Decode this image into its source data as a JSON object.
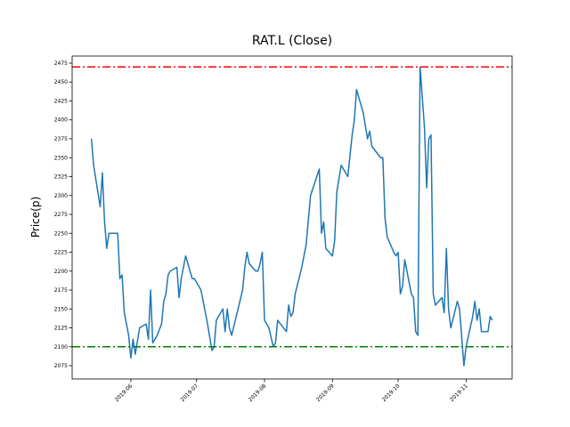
{
  "chart_data": {
    "type": "line",
    "title": "RAT.L (Close)",
    "y_label": "Price(p)",
    "color": "#1f77b4",
    "x": [
      134,
      135,
      138,
      139,
      140,
      141,
      142,
      146,
      147,
      148,
      149,
      151,
      152,
      153,
      154,
      156,
      159,
      160,
      161,
      162,
      164,
      166,
      167,
      168,
      169,
      170,
      173,
      174,
      175,
      177,
      180,
      181,
      184,
      187,
      189,
      190,
      191,
      194,
      195,
      196,
      197,
      198,
      203,
      204,
      205,
      206,
      209,
      210,
      211,
      212,
      213,
      215,
      217,
      218,
      219,
      223,
      224,
      225,
      226,
      227,
      230,
      232,
      234,
      238,
      239,
      240,
      241,
      244,
      245,
      246,
      248,
      251,
      253,
      254,
      255,
      258,
      260,
      261,
      262,
      266,
      267,
      268,
      269,
      272,
      273,
      274,
      275,
      276,
      277,
      280,
      281,
      282,
      283,
      284,
      286,
      287,
      288,
      289,
      290,
      291,
      294,
      295,
      296,
      297,
      298,
      301,
      302,
      304,
      305,
      308,
      309,
      310,
      311,
      312,
      315,
      316,
      317
    ],
    "values": [
      2375,
      2340,
      2285,
      2330,
      2265,
      2230,
      2250,
      2250,
      2190,
      2195,
      2145,
      2115,
      2085,
      2110,
      2090,
      2125,
      2130,
      2110,
      2175,
      2105,
      2115,
      2130,
      2160,
      2170,
      2195,
      2200,
      2205,
      2165,
      2190,
      2220,
      2190,
      2190,
      2175,
      2130,
      2095,
      2100,
      2135,
      2150,
      2120,
      2150,
      2125,
      2115,
      2175,
      2205,
      2225,
      2210,
      2200,
      2200,
      2210,
      2225,
      2135,
      2125,
      2100,
      2105,
      2135,
      2120,
      2155,
      2140,
      2145,
      2170,
      2205,
      2235,
      2300,
      2335,
      2250,
      2265,
      2230,
      2220,
      2240,
      2305,
      2340,
      2325,
      2380,
      2400,
      2440,
      2410,
      2375,
      2385,
      2365,
      2350,
      2350,
      2270,
      2245,
      2225,
      2220,
      2225,
      2170,
      2180,
      2215,
      2170,
      2165,
      2120,
      2115,
      2470,
      2390,
      2310,
      2375,
      2380,
      2170,
      2155,
      2165,
      2145,
      2230,
      2150,
      2125,
      2160,
      2150,
      2075,
      2100,
      2140,
      2160,
      2135,
      2150,
      2120,
      2120,
      2140,
      2135
    ],
    "reference_lines": [
      {
        "value": 2470,
        "color": "#ff0000"
      },
      {
        "value": 2100,
        "color": "#008000"
      }
    ],
    "xlim": [
      125.2,
      326.0
    ],
    "xticks": [
      {
        "value": 152,
        "label": "2019-06"
      },
      {
        "value": 182,
        "label": "2019-07"
      },
      {
        "value": 213,
        "label": "2019-08"
      },
      {
        "value": 244,
        "label": "2019-09"
      },
      {
        "value": 274,
        "label": "2019-10"
      },
      {
        "value": 305,
        "label": "2019-11"
      }
    ],
    "ylim": [
      2057.4,
      2484.4
    ],
    "yticks": [
      2075,
      2100,
      2125,
      2150,
      2175,
      2200,
      2225,
      2250,
      2275,
      2300,
      2325,
      2350,
      2375,
      2400,
      2425,
      2450,
      2475
    ]
  }
}
